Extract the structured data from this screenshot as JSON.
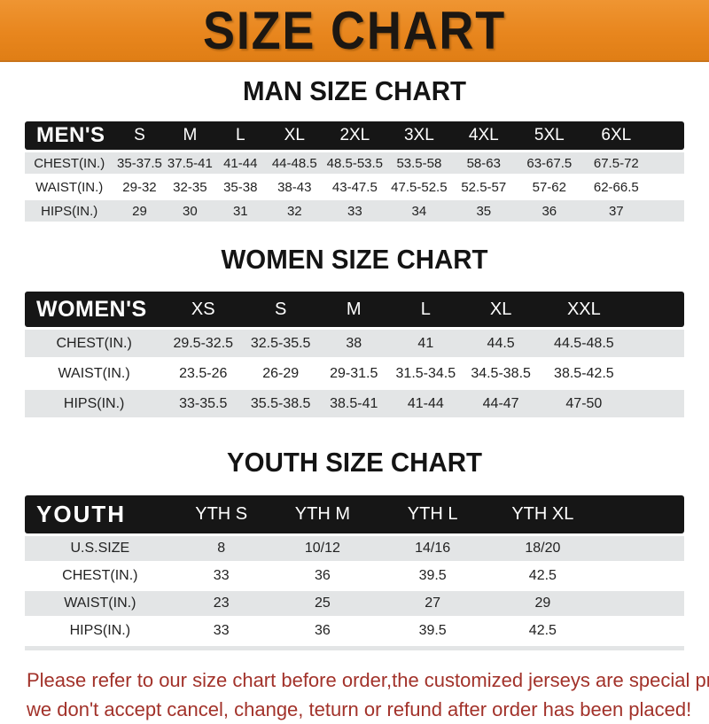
{
  "banner": {
    "title": "SIZE CHART"
  },
  "colors": {
    "banner_bg": "#e8861e",
    "header_bar_bg": "#161616",
    "row_stripe": "#e3e5e6",
    "footer_text": "#a2322a",
    "title_text": "#141414"
  },
  "sections": [
    {
      "id": "men",
      "title": "MAN SIZE CHART",
      "header_label": "MEN'S",
      "columns": [
        "S",
        "M",
        "L",
        "XL",
        "2XL",
        "3XL",
        "4XL",
        "5XL",
        "6XL"
      ],
      "rows": [
        {
          "label": "CHEST(IN.)",
          "values": [
            "35-37.5",
            "37.5-41",
            "41-44",
            "44-48.5",
            "48.5-53.5",
            "53.5-58",
            "58-63",
            "63-67.5",
            "67.5-72"
          ]
        },
        {
          "label": "WAIST(IN.)",
          "values": [
            "29-32",
            "32-35",
            "35-38",
            "38-43",
            "43-47.5",
            "47.5-52.5",
            "52.5-57",
            "57-62",
            "62-66.5"
          ]
        },
        {
          "label": "HIPS(IN.)",
          "values": [
            "29",
            "30",
            "31",
            "32",
            "33",
            "34",
            "35",
            "36",
            "37"
          ]
        }
      ]
    },
    {
      "id": "women",
      "title": "WOMEN SIZE CHART",
      "header_label": "WOMEN'S",
      "columns": [
        "XS",
        "S",
        "M",
        "L",
        "XL",
        "XXL"
      ],
      "rows": [
        {
          "label": "CHEST(IN.)",
          "values": [
            "29.5-32.5",
            "32.5-35.5",
            "38",
            "41",
            "44.5",
            "44.5-48.5"
          ]
        },
        {
          "label": "WAIST(IN.)",
          "values": [
            "23.5-26",
            "26-29",
            "29-31.5",
            "31.5-34.5",
            "34.5-38.5",
            "38.5-42.5"
          ]
        },
        {
          "label": "HIPS(IN.)",
          "values": [
            "33-35.5",
            "35.5-38.5",
            "38.5-41",
            "41-44",
            "44-47",
            "47-50"
          ]
        }
      ]
    },
    {
      "id": "youth",
      "title": "YOUTH SIZE CHART",
      "header_label": "YOUTH",
      "columns": [
        "YTH S",
        "YTH M",
        "YTH L",
        "YTH XL"
      ],
      "rows": [
        {
          "label": "U.S.SIZE",
          "values": [
            "8",
            "10/12",
            "14/16",
            "18/20"
          ]
        },
        {
          "label": "CHEST(IN.)",
          "values": [
            "33",
            "36",
            "39.5",
            "42.5"
          ]
        },
        {
          "label": "WAIST(IN.)",
          "values": [
            "23",
            "25",
            "27",
            "29"
          ]
        },
        {
          "label": "HIPS(IN.)",
          "values": [
            "33",
            "36",
            "39.5",
            "42.5"
          ]
        }
      ]
    }
  ],
  "footer": {
    "lines": [
      "Please refer to our size chart before order,the customized jerseys are special products,",
      "we don't accept cancel, change, teturn or refund after order has been placed!"
    ]
  }
}
